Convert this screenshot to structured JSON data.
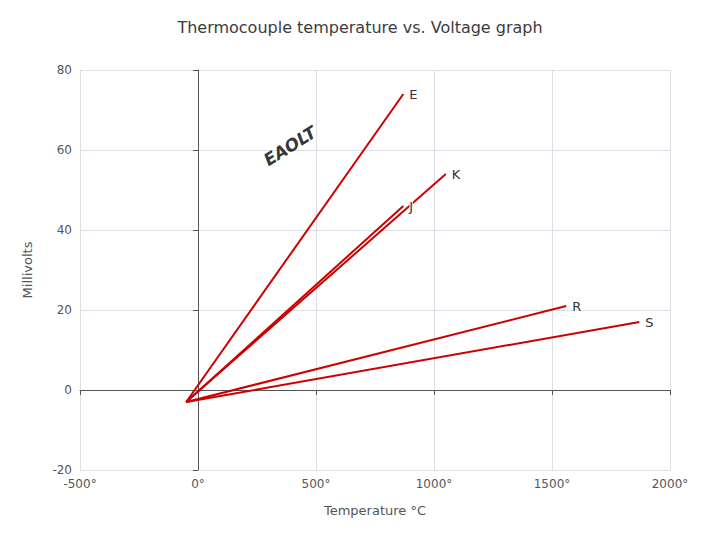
{
  "chart_data": {
    "type": "line",
    "title": "Thermocouple temperature vs. Voltage graph",
    "xlabel": "Temperature °C",
    "ylabel": "Millivolts",
    "xlim": [
      -500,
      2000
    ],
    "xticks": [
      {
        "value": -500,
        "label": "-500°"
      },
      {
        "value": 0,
        "label": "0°"
      },
      {
        "value": 500,
        "label": "500°"
      },
      {
        "value": 1000,
        "label": "1000°"
      },
      {
        "value": 1500,
        "label": "1500°"
      },
      {
        "value": 2000,
        "label": "2000°"
      }
    ],
    "ylim": [
      -20,
      80
    ],
    "yticks": [
      -20,
      0,
      20,
      40,
      60,
      80
    ],
    "grid": true,
    "series": [
      {
        "name": "E",
        "color": "#cc0000",
        "x": [
          -50,
          870
        ],
        "values": [
          -3,
          74
        ]
      },
      {
        "name": "K",
        "color": "#cc0000",
        "x": [
          -50,
          1050
        ],
        "values": [
          -3,
          54
        ]
      },
      {
        "name": "J",
        "color": "#cc0000",
        "x": [
          -50,
          870
        ],
        "values": [
          -3,
          46
        ]
      },
      {
        "name": "R",
        "color": "#cc0000",
        "x": [
          -50,
          1560
        ],
        "values": [
          -3,
          21
        ]
      },
      {
        "name": "S",
        "color": "#cc0000",
        "x": [
          -50,
          1870
        ],
        "values": [
          -3,
          17
        ]
      }
    ],
    "annotations": [
      {
        "text": "EAOLT",
        "x": 390,
        "y": 61
      }
    ]
  }
}
